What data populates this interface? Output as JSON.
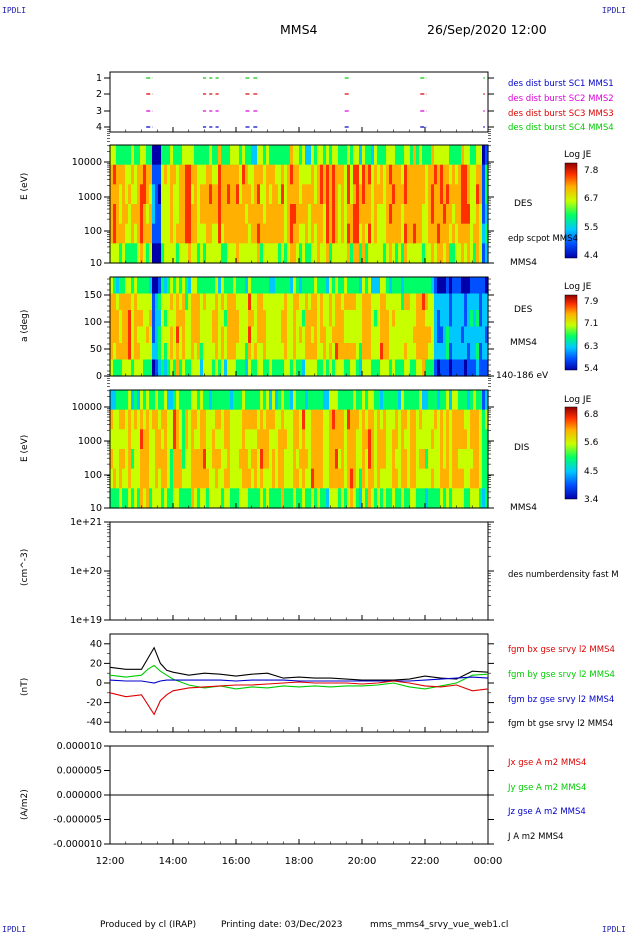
{
  "header": {
    "spacecraft": "MMS4",
    "datetime": "26/Sep/2020 12:00",
    "corner_label": "IPDLI"
  },
  "footer": {
    "produced_by": "Produced by cl (IRAP)",
    "printing_date": "Printing date: 03/Dec/2023",
    "filename": "mms_mms4_srvy_vue_web1.cl"
  },
  "colors": {
    "red": "#dd0000",
    "green": "#00cc00",
    "blue": "#0000cc",
    "black": "#000000",
    "magenta": "#dd00dd"
  },
  "chart_data": [
    {
      "type": "scatter",
      "panel": "burst-availability",
      "y_ticks": [
        "1",
        "2",
        "3",
        "4"
      ],
      "legend": [
        {
          "label": "des dist burst SC1 MMS1",
          "color": "#0000cc"
        },
        {
          "label": "des dist burst SC2 MMS2",
          "color": "#dd00dd"
        },
        {
          "label": "des dist burst SC3 MMS3",
          "color": "#dd0000"
        },
        {
          "label": "des dist burst SC4 MMS4",
          "color": "#00cc00"
        }
      ],
      "intervals_hours": [
        [
          13.15,
          13.35
        ],
        [
          14.95,
          15.05
        ],
        [
          15.15,
          15.25
        ],
        [
          15.35,
          15.45
        ],
        [
          16.3,
          16.45
        ],
        [
          16.55,
          16.7
        ],
        [
          19.45,
          19.6
        ],
        [
          21.85,
          22.05
        ],
        [
          23.85,
          23.9
        ]
      ]
    },
    {
      "type": "heatmap",
      "panel": "des-energy",
      "ylabel": "E (eV)",
      "yscale": "log",
      "y_ticks": [
        "10",
        "100",
        "1000",
        "10000"
      ],
      "label": "DES",
      "sublabel": "edp scpot MMS4",
      "spacecraft_label": "MMS4",
      "colorbar": {
        "title": "Log JE",
        "ticks": [
          "7.8",
          "6.7",
          "5.5",
          "4.4"
        ]
      }
    },
    {
      "type": "heatmap",
      "panel": "des-pitch-angle",
      "ylabel": "a (deg)",
      "y_ticks": [
        "0",
        "50",
        "100",
        "150"
      ],
      "label": "DES",
      "spacecraft_label": "MMS4",
      "energy_range": "140-186 eV",
      "colorbar": {
        "title": "Log JE",
        "ticks": [
          "7.9",
          "7.1",
          "6.3",
          "5.4"
        ]
      }
    },
    {
      "type": "heatmap",
      "panel": "dis-energy",
      "ylabel": "E (eV)",
      "yscale": "log",
      "y_ticks": [
        "10",
        "100",
        "1000",
        "10000"
      ],
      "label": "DIS",
      "spacecraft_label": "MMS4",
      "colorbar": {
        "title": "Log JE",
        "ticks": [
          "6.8",
          "5.6",
          "4.5",
          "3.4"
        ]
      }
    },
    {
      "type": "line",
      "panel": "density",
      "ylabel": "(cm^-3)",
      "yscale": "log",
      "y_ticks": [
        "1e+19",
        "1e+20",
        "1e+21"
      ],
      "legend": [
        {
          "label": "des numberdensity fast M",
          "color": "#000000"
        }
      ]
    },
    {
      "type": "line",
      "panel": "magnetic-field",
      "ylabel": "(nT)",
      "ylim": [
        -50,
        50
      ],
      "y_ticks": [
        "-40",
        "-20",
        "0",
        "20",
        "40"
      ],
      "legend": [
        {
          "label": "fgm bx gse srvy l2 MMS4",
          "color": "#dd0000"
        },
        {
          "label": "fgm by gse srvy l2 MMS4",
          "color": "#00cc00"
        },
        {
          "label": "fgm bz gse srvy l2 MMS4",
          "color": "#0000cc"
        },
        {
          "label": "fgm bt gse srvy l2 MMS4",
          "color": "#000000"
        }
      ],
      "series": [
        {
          "name": "fgm bt gse srvy l2 MMS4",
          "color": "#000000",
          "x": [
            12,
            12.5,
            13,
            13.2,
            13.4,
            13.6,
            13.8,
            14,
            14.5,
            15,
            15.5,
            16,
            16.5,
            17,
            17.5,
            18,
            18.5,
            19,
            19.5,
            20,
            20.5,
            21,
            21.5,
            22,
            22.5,
            23,
            23.5,
            24
          ],
          "values": [
            16,
            14,
            14,
            25,
            36,
            20,
            13,
            11,
            8,
            10,
            9,
            7,
            9,
            10,
            5,
            6,
            5,
            5,
            4,
            3,
            3,
            3,
            4,
            7,
            5,
            4,
            12,
            11
          ]
        },
        {
          "name": "fgm by gse srvy l2 MMS4",
          "color": "#00cc00",
          "x": [
            12,
            12.5,
            13,
            13.2,
            13.4,
            13.6,
            13.8,
            14,
            14.5,
            15,
            15.5,
            16,
            16.5,
            17,
            17.5,
            18,
            18.5,
            19,
            19.5,
            20,
            20.5,
            21,
            21.5,
            22,
            22.5,
            23,
            23.5,
            24
          ],
          "values": [
            8,
            6,
            8,
            14,
            18,
            12,
            8,
            4,
            -2,
            -5,
            -3,
            -6,
            -4,
            -5,
            -3,
            -4,
            -3,
            -4,
            -3,
            -3,
            -2,
            0,
            -4,
            -6,
            -3,
            0,
            8,
            9
          ]
        },
        {
          "name": "fgm bz gse srvy l2 MMS4",
          "color": "#0000cc",
          "x": [
            12,
            12.5,
            13,
            13.2,
            13.4,
            13.6,
            13.8,
            14,
            14.5,
            15,
            15.5,
            16,
            16.5,
            17,
            17.5,
            18,
            18.5,
            19,
            19.5,
            20,
            20.5,
            21,
            21.5,
            22,
            22.5,
            23,
            23.5,
            24
          ],
          "values": [
            3,
            2,
            2,
            1,
            0,
            2,
            3,
            3,
            3,
            3,
            3,
            2,
            3,
            3,
            3,
            2,
            2,
            2,
            2,
            2,
            2,
            2,
            2,
            3,
            4,
            5,
            6,
            5
          ]
        },
        {
          "name": "fgm bx gse srvy l2 MMS4",
          "color": "#dd0000",
          "x": [
            12,
            12.5,
            13,
            13.2,
            13.4,
            13.6,
            13.8,
            14,
            14.5,
            15,
            15.5,
            16,
            16.5,
            17,
            17.5,
            18,
            18.5,
            19,
            19.5,
            20,
            20.5,
            21,
            21.5,
            22,
            22.5,
            23,
            23.5,
            24
          ],
          "values": [
            -10,
            -14,
            -12,
            -22,
            -32,
            -18,
            -12,
            -8,
            -5,
            -4,
            -3,
            -2,
            -2,
            -1,
            0,
            1,
            0,
            0,
            0,
            -1,
            0,
            2,
            0,
            -3,
            -4,
            -2,
            -8,
            -6
          ]
        }
      ]
    },
    {
      "type": "line",
      "panel": "current-density",
      "ylabel": "(A/m2)",
      "ylim": [
        -1e-05,
        1e-05
      ],
      "y_ticks": [
        "-0.000010",
        "-0.000005",
        "0.000000",
        "0.000005",
        "0.000010"
      ],
      "legend": [
        {
          "label": "Jx gse A m2 MMS4",
          "color": "#dd0000"
        },
        {
          "label": "Jy gse A m2 MMS4",
          "color": "#00cc00"
        },
        {
          "label": "Jz gse A m2 MMS4",
          "color": "#0000cc"
        },
        {
          "label": "J A m2 MMS4",
          "color": "#000000"
        }
      ],
      "series": [
        {
          "name": "J A m2 MMS4",
          "color": "#000000",
          "x": [
            12,
            24
          ],
          "values": [
            0,
            0
          ]
        }
      ]
    }
  ],
  "time_axis": {
    "tick_labels": [
      "12:00",
      "14:00",
      "16:00",
      "18:00",
      "20:00",
      "22:00",
      "00:00"
    ],
    "tick_hours": [
      12,
      14,
      16,
      18,
      20,
      22,
      24
    ]
  }
}
